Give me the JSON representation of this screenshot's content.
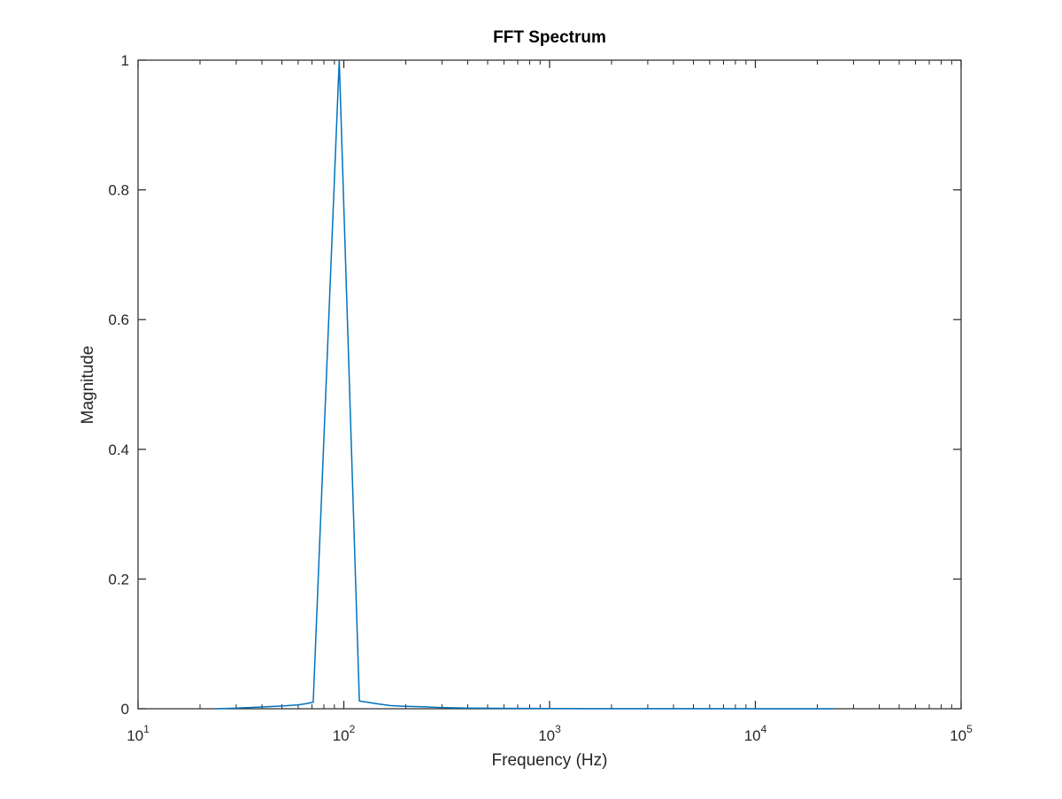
{
  "chart_data": {
    "type": "line",
    "title": "FFT Spectrum",
    "xlabel": "Frequency (Hz)",
    "ylabel": "Magnitude",
    "xscale": "log",
    "xlim": [
      10,
      100000
    ],
    "ylim": [
      0,
      1
    ],
    "grid": false,
    "line_color": "#0072bd",
    "x_ticks": [
      {
        "base": "10",
        "exp": "1",
        "value": 10
      },
      {
        "base": "10",
        "exp": "2",
        "value": 100
      },
      {
        "base": "10",
        "exp": "3",
        "value": 1000
      },
      {
        "base": "10",
        "exp": "4",
        "value": 10000
      },
      {
        "base": "10",
        "exp": "5",
        "value": 100000
      }
    ],
    "y_ticks": [
      {
        "label": "0",
        "value": 0
      },
      {
        "label": "0.2",
        "value": 0.2
      },
      {
        "label": "0.4",
        "value": 0.4
      },
      {
        "label": "0.6",
        "value": 0.6
      },
      {
        "label": "0.8",
        "value": 0.8
      },
      {
        "label": "1",
        "value": 1
      }
    ],
    "series": [
      {
        "x": [
          24,
          30,
          36,
          42,
          48,
          54,
          60,
          66,
          71,
          95,
          119,
          143,
          167,
          191,
          239,
          287,
          400,
          700,
          1500,
          5000,
          24000
        ],
        "y": [
          0.0,
          0.001,
          0.002,
          0.003,
          0.004,
          0.005,
          0.006,
          0.008,
          0.01,
          1.0,
          0.012,
          0.008,
          0.005,
          0.004,
          0.003,
          0.002,
          0.001,
          0.0005,
          0.0002,
          0.0001,
          0.0
        ]
      }
    ]
  }
}
